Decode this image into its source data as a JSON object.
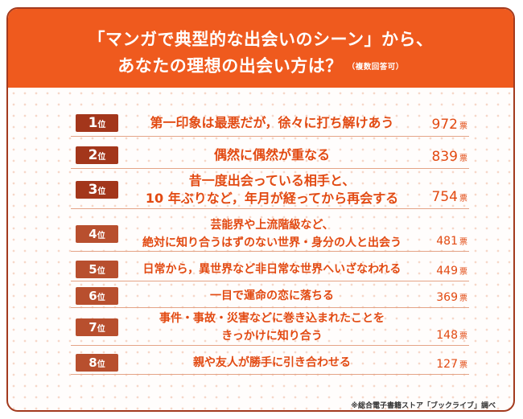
{
  "title": {
    "line1": "「マンガで典型的な出会いのシーン」から、",
    "line2": "あなたの理想の出会い方は？",
    "note": "（複数回答可）"
  },
  "rank_suffix": "位",
  "vote_unit": "票",
  "source": "※総合電子書籍ストア「ブックライブ」調べ",
  "rows": [
    {
      "rank": "1",
      "lines": [
        "第一印象は最悪だが，徐々に打ち解けあう"
      ],
      "votes": "972"
    },
    {
      "rank": "2",
      "lines": [
        "偶然に偶然が重なる"
      ],
      "votes": "839"
    },
    {
      "rank": "3",
      "lines": [
        "昔一度出会っている相手と、",
        "10 年ぶりなど，年月が経ってから再会する"
      ],
      "votes": "754"
    },
    {
      "rank": "4",
      "lines": [
        "芸能界や上流階級など、",
        "絶対に知り合うはずのない世界・身分の人と出会う"
      ],
      "votes": "481"
    },
    {
      "rank": "5",
      "lines": [
        "日常から，異世界など非日常な世界へいざなわれる"
      ],
      "votes": "449"
    },
    {
      "rank": "6",
      "lines": [
        "一目で運命の恋に落ちる"
      ],
      "votes": "369"
    },
    {
      "rank": "7",
      "lines": [
        "事件・事故・災害などに巻き込まれたことを",
        "きっかけに知り合う"
      ],
      "votes": "148"
    },
    {
      "rank": "8",
      "lines": [
        "親や友人が勝手に引き合わせる"
      ],
      "votes": "127"
    }
  ],
  "chart_data": {
    "type": "table",
    "title": "「マンガで典型的な出会いのシーン」から、あなたの理想の出会い方は？（複数回答可）",
    "categories": [
      "第一印象は最悪だが，徐々に打ち解けあう",
      "偶然に偶然が重なる",
      "昔一度出会っている相手と、10 年ぶりなど，年月が経ってから再会する",
      "芸能界や上流階級など、絶対に知り合うはずのない世界・身分の人と出会う",
      "日常から，異世界など非日常な世界へいざなわれる",
      "一目で運命の恋に落ちる",
      "事件・事故・災害などに巻き込まれたことをきっかけに知り合う",
      "親や友人が勝手に引き合わせる"
    ],
    "values": [
      972,
      839,
      754,
      481,
      449,
      369,
      148,
      127
    ],
    "ylabel": "票"
  }
}
